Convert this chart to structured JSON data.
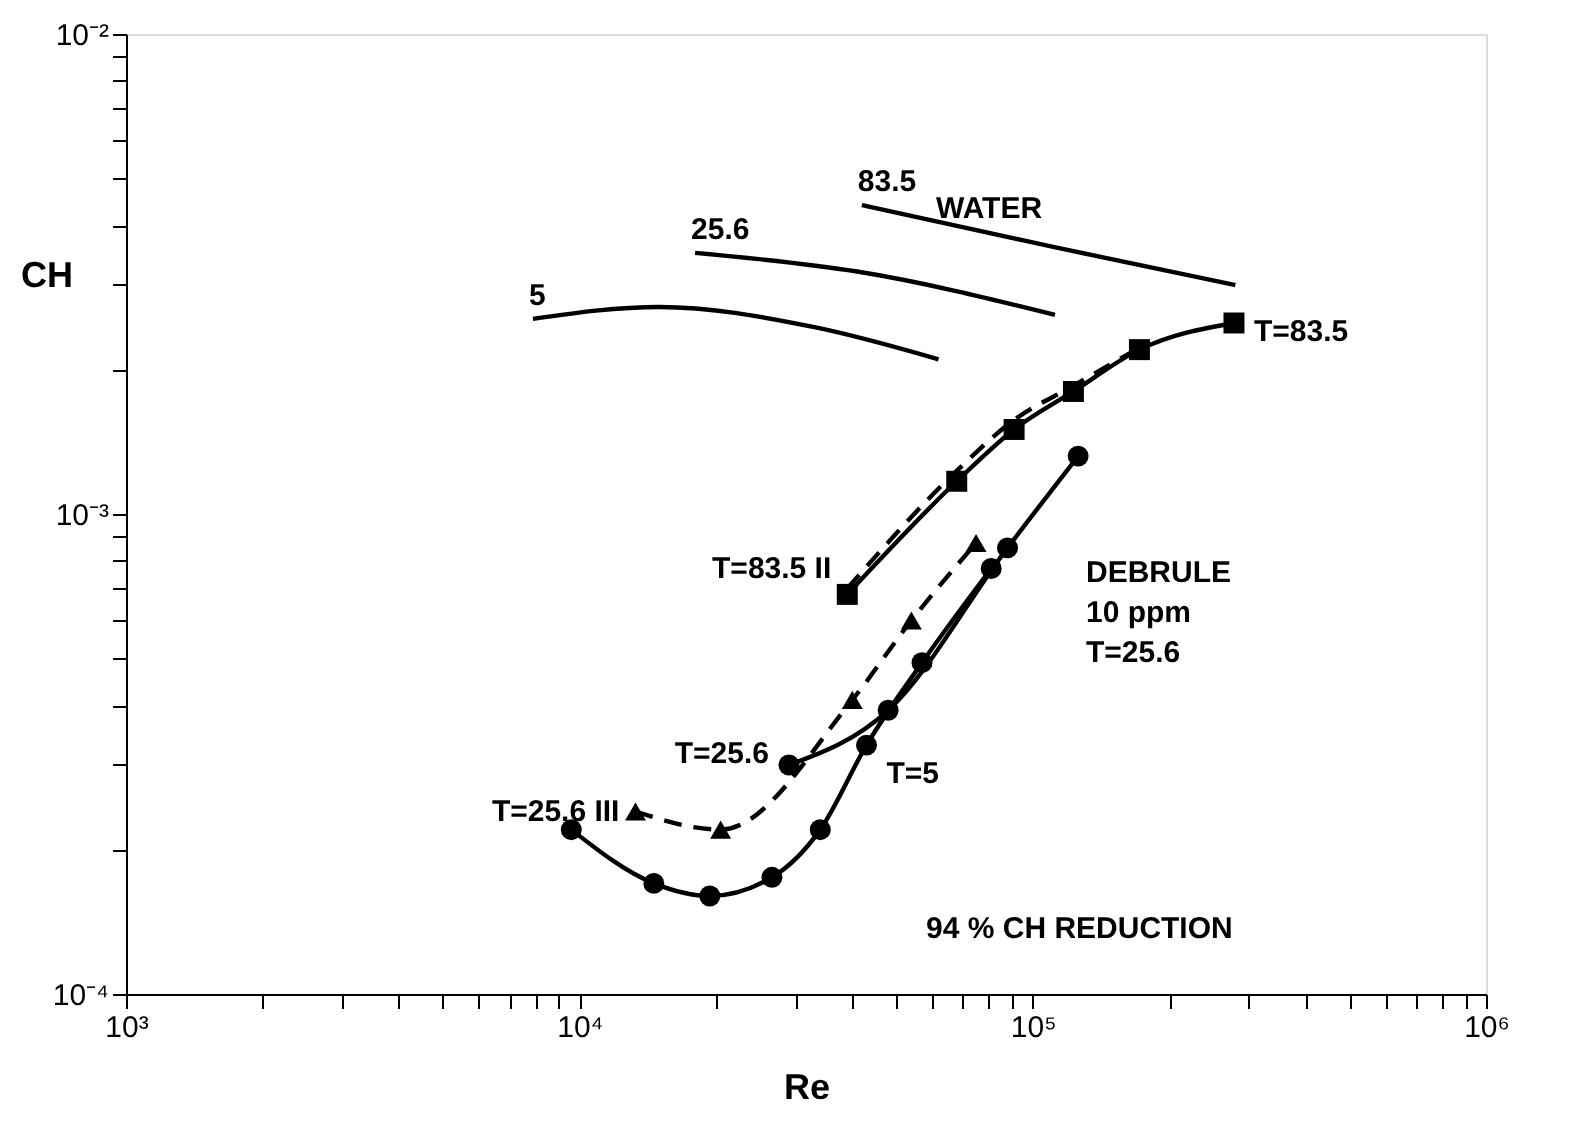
{
  "chart_data": {
    "type": "line",
    "xlabel": "Re",
    "ylabel": "CH",
    "log": "xy",
    "grid": false,
    "xlim": [
      1000,
      1000000
    ],
    "ylim": [
      0.0001,
      0.01
    ],
    "xticks": [
      {
        "value": 1000,
        "label": "10³"
      },
      {
        "value": 2000,
        "label": null
      },
      {
        "value": 3000,
        "label": null
      },
      {
        "value": 4000,
        "label": null
      },
      {
        "value": 5000,
        "label": null
      },
      {
        "value": 6000,
        "label": null
      },
      {
        "value": 7000,
        "label": null
      },
      {
        "value": 8000,
        "label": null
      },
      {
        "value": 9000,
        "label": null
      },
      {
        "value": 10000,
        "label": "10⁴"
      },
      {
        "value": 20000,
        "label": null
      },
      {
        "value": 30000,
        "label": null
      },
      {
        "value": 40000,
        "label": null
      },
      {
        "value": 50000,
        "label": null
      },
      {
        "value": 60000,
        "label": null
      },
      {
        "value": 70000,
        "label": null
      },
      {
        "value": 80000,
        "label": null
      },
      {
        "value": 90000,
        "label": null
      },
      {
        "value": 100000,
        "label": "10⁵"
      },
      {
        "value": 200000,
        "label": null
      },
      {
        "value": 300000,
        "label": null
      },
      {
        "value": 400000,
        "label": null
      },
      {
        "value": 500000,
        "label": null
      },
      {
        "value": 600000,
        "label": null
      },
      {
        "value": 700000,
        "label": null
      },
      {
        "value": 800000,
        "label": null
      },
      {
        "value": 900000,
        "label": null
      },
      {
        "value": 1000000,
        "label": "10⁶"
      }
    ],
    "yticks": [
      {
        "value": 0.0001,
        "label": "10⁻⁴"
      },
      {
        "value": 0.0002,
        "label": null
      },
      {
        "value": 0.0003,
        "label": null
      },
      {
        "value": 0.0004,
        "label": null
      },
      {
        "value": 0.0005,
        "label": null
      },
      {
        "value": 0.0006,
        "label": null
      },
      {
        "value": 0.0007,
        "label": null
      },
      {
        "value": 0.0008,
        "label": null
      },
      {
        "value": 0.0009,
        "label": null
      },
      {
        "value": 0.001,
        "label": "10⁻³"
      },
      {
        "value": 0.002,
        "label": null
      },
      {
        "value": 0.003,
        "label": null
      },
      {
        "value": 0.004,
        "label": null
      },
      {
        "value": 0.005,
        "label": null
      },
      {
        "value": 0.006,
        "label": null
      },
      {
        "value": 0.007,
        "label": null
      },
      {
        "value": 0.008,
        "label": null
      },
      {
        "value": 0.009,
        "label": null
      },
      {
        "value": 0.01,
        "label": "10⁻²"
      }
    ],
    "series": [
      {
        "name": "5",
        "color": "#000000",
        "marker": "none",
        "line_style": "solid",
        "x": [
          7900,
          15000,
          33000,
          62000
        ],
        "values": [
          0.00255,
          0.0027,
          0.00245,
          0.0021
        ]
      },
      {
        "name": "25.6",
        "color": "#000000",
        "marker": "none",
        "line_style": "solid",
        "x": [
          18000,
          41000,
          112000
        ],
        "values": [
          0.0035,
          0.0032,
          0.0026
        ]
      },
      {
        "name": "83.5",
        "color": "#000000",
        "marker": "none",
        "line_style": "solid",
        "x": [
          42000,
          111000,
          280000
        ],
        "values": [
          0.0044,
          0.0036,
          0.003
        ]
      },
      {
        "name": "T=83.5",
        "color": "#000000",
        "marker": "square",
        "line_style": "solid",
        "x": [
          39000,
          68000,
          91000,
          123000,
          172000,
          278000
        ],
        "values": [
          0.00068,
          0.00117,
          0.0015,
          0.0018,
          0.0022,
          0.0025
        ]
      },
      {
        "name": "T=83.5 II",
        "color": "#000000",
        "marker": "none",
        "line_style": "dashed",
        "x": [
          39000,
          68000,
          91000,
          123000,
          172000
        ],
        "values": [
          0.0007,
          0.00123,
          0.00157,
          0.00185,
          0.00222
        ]
      },
      {
        "name": "T=25.6 III",
        "color": "#000000",
        "marker": "triangle",
        "line_style": "dashed",
        "x": [
          13300,
          20500,
          40000,
          54000,
          75000
        ],
        "values": [
          0.00024,
          0.00022,
          0.00041,
          0.0006,
          0.00087
        ]
      },
      {
        "name": "T=25.6",
        "color": "#000000",
        "marker": "circle",
        "line_style": "solid",
        "x": [
          29000,
          48000,
          88000,
          126000
        ],
        "values": [
          0.0003,
          0.00039,
          0.00085,
          0.00132
        ]
      },
      {
        "name": "T=5",
        "color": "#000000",
        "marker": "circle",
        "line_style": "solid",
        "x": [
          9600,
          14600,
          19400,
          26600,
          34000,
          43000,
          57000,
          81000
        ],
        "values": [
          0.00022,
          0.00017,
          0.00016,
          0.000175,
          0.00022,
          0.00033,
          0.00049,
          0.00077
        ]
      }
    ],
    "annotations": [
      "WATER",
      "94 % CH REDUCTION",
      "DEBRULE\n10 ppm\nT=25.6"
    ]
  }
}
